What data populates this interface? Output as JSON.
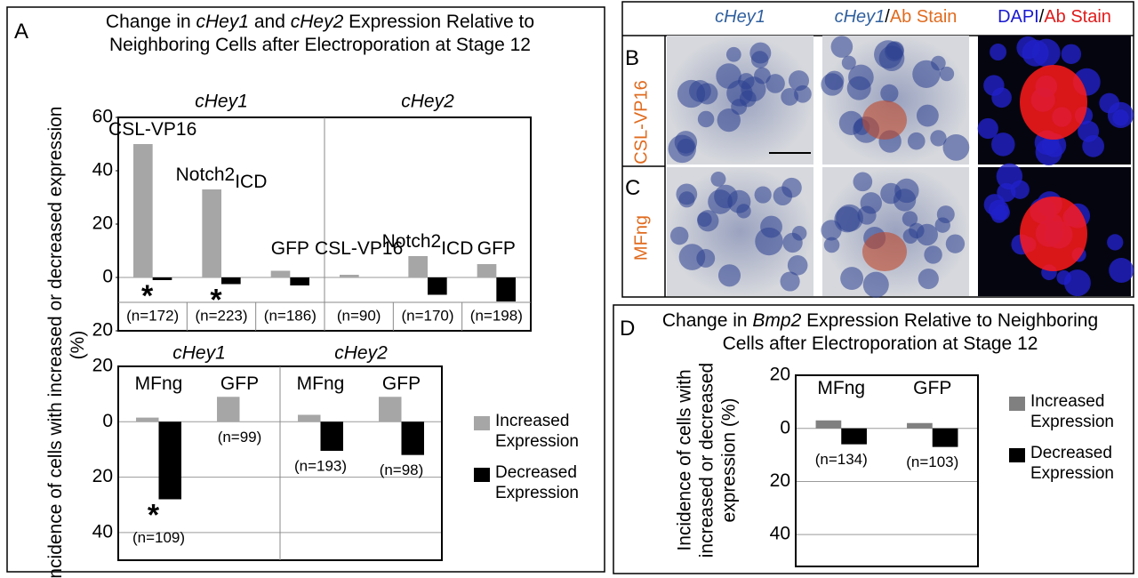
{
  "panel_labels": [
    "A",
    "B",
    "C",
    "D"
  ],
  "figure_a": {
    "title_line1": [
      "Change in ",
      "cHey1",
      " and ",
      "cHey2",
      " Expression Relative to"
    ],
    "title_line2": "Neighboring Cells after Electroporation at Stage 12",
    "y_label": "Incidence of cells with increased or decreased expression (%)"
  },
  "figure_d": {
    "title_line1": [
      "Change in ",
      "Bmp2",
      " Expression Relative to Neighboring"
    ],
    "title_line2": "Cells after Electroporation at Stage 12",
    "y_label": "Incidence of cells with increased or decreased expression (%)"
  },
  "images": {
    "columns": [
      [
        "cHey1"
      ],
      [
        "cHey1",
        "/",
        "Ab Stain"
      ],
      [
        "DAPI",
        "/",
        "Ab Stain"
      ]
    ],
    "rows": [
      "CSL-VP16",
      "MFng"
    ]
  },
  "chart_data": [
    {
      "type": "bar",
      "groups": [
        "cHey1",
        "cHey2"
      ],
      "categories": [
        {
          "text": "CSL-VP16"
        },
        {
          "text": "Notch2",
          "sub": "ICD"
        },
        {
          "text": "GFP"
        },
        {
          "text": "CSL-VP16"
        },
        {
          "text": "Notch2",
          "sub": "ICD"
        },
        {
          "text": "GFP"
        }
      ],
      "n_labels": [
        "(n=172)",
        "(n=223)",
        "(n=186)",
        "(n=90)",
        "(n=170)",
        "(n=198)"
      ],
      "significance": [
        "*",
        "*",
        null,
        null,
        null,
        null
      ],
      "series": [
        {
          "name": "Increased Expression",
          "color": "#a6a6a6",
          "values": [
            50,
            33,
            2.5,
            1,
            8,
            5
          ]
        },
        {
          "name": "Decreased Expression",
          "color": "#000000",
          "values": [
            -1,
            -2.5,
            -3,
            0,
            -6.5,
            -9
          ]
        }
      ],
      "ylim": [
        -20,
        60
      ],
      "yticks": [
        60,
        40,
        20,
        0,
        {
          "value": -20,
          "label": "20"
        }
      ],
      "grid": false,
      "legend": false
    },
    {
      "type": "bar",
      "groups": [
        "cHey1",
        "cHey2"
      ],
      "categories": [
        {
          "text": "MFng"
        },
        {
          "text": "GFP"
        },
        {
          "text": "MFng"
        },
        {
          "text": "GFP"
        }
      ],
      "n_labels": [
        "(n=109)",
        "(n=99)",
        "(n=193)",
        "(n=98)"
      ],
      "significance": [
        "*",
        null,
        null,
        null
      ],
      "series": [
        {
          "name": "Increased Expression",
          "color": "#a6a6a6",
          "values": [
            1.5,
            9,
            2.5,
            9
          ]
        },
        {
          "name": "Decreased Expression",
          "color": "#000000",
          "values": [
            -28,
            0,
            -10.5,
            -12
          ]
        }
      ],
      "ylim": [
        -50,
        20
      ],
      "yticks": [
        20,
        0,
        {
          "value": -20,
          "label": "20"
        },
        {
          "value": -40,
          "label": "40"
        }
      ],
      "grid": true,
      "legend": true
    },
    {
      "type": "bar",
      "categories": [
        {
          "text": "MFng"
        },
        {
          "text": "GFP"
        }
      ],
      "n_labels": [
        "(n=134)",
        "(n=103)"
      ],
      "series": [
        {
          "name": "Increased Expression",
          "color": "#808080",
          "values": [
            3,
            2
          ]
        },
        {
          "name": "Decreased Expression",
          "color": "#000000",
          "values": [
            -6,
            -7
          ]
        }
      ],
      "ylim": [
        -52,
        20
      ],
      "yticks": [
        20,
        0,
        {
          "value": -20,
          "label": "20"
        },
        {
          "value": -40,
          "label": "40"
        }
      ],
      "grid": true,
      "legend": true
    }
  ]
}
